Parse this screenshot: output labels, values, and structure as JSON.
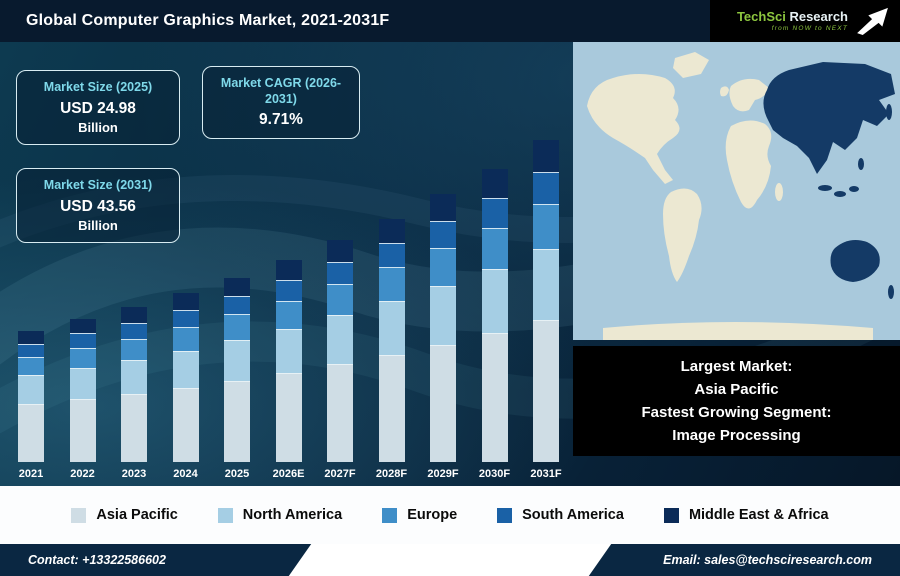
{
  "header": {
    "title": "Global Computer Graphics Market, 2021-2031F",
    "logo": {
      "brand_primary": "TechSci",
      "brand_secondary": "Research",
      "tagline": "from NOW to NEXT"
    }
  },
  "stats": {
    "size_2025": {
      "label": "Market Size (2025)",
      "value": "USD 24.98",
      "unit": "Billion"
    },
    "cagr": {
      "label": "Market CAGR (2026-2031)",
      "value": "9.71%"
    },
    "size_2031": {
      "label": "Market Size (2031)",
      "value": "USD 43.56",
      "unit": "Billion"
    }
  },
  "map": {
    "ocean_color": "#a9c9dc",
    "land_color": "#ece8d2",
    "highlight_color": "#143a66"
  },
  "info_box": {
    "line1": "Largest Market:",
    "line2": "Asia Pacific",
    "line3": "Fastest Growing Segment:",
    "line4": "Image Processing"
  },
  "footer": {
    "contact": "Contact: +13322586602",
    "email": "Email: sales@techsciresearch.com"
  },
  "chart_data": {
    "type": "bar",
    "stacked": true,
    "title": "Global Computer Graphics Market, 2021-2031F",
    "unit": "USD Billion",
    "legend_position": "bottom",
    "y_axis_visible": false,
    "categories": [
      "2021",
      "2022",
      "2023",
      "2024",
      "2025",
      "2026E",
      "2027F",
      "2028F",
      "2029F",
      "2030F",
      "2031F"
    ],
    "series": [
      {
        "name": "Asia Pacific",
        "color": "#cfdde5",
        "values": [
          7.9,
          8.5,
          9.2,
          10.0,
          11.0,
          12.1,
          13.3,
          14.5,
          15.9,
          17.5,
          19.2
        ]
      },
      {
        "name": "North America",
        "color": "#a5cee4",
        "values": [
          3.9,
          4.2,
          4.6,
          5.0,
          5.5,
          6.0,
          6.6,
          7.3,
          8.0,
          8.7,
          9.6
        ]
      },
      {
        "name": "Europe",
        "color": "#3f8ec8",
        "values": [
          2.5,
          2.7,
          2.9,
          3.2,
          3.5,
          3.8,
          4.2,
          4.6,
          5.1,
          5.6,
          6.1
        ]
      },
      {
        "name": "South America",
        "color": "#1a61a6",
        "values": [
          1.8,
          2.0,
          2.1,
          2.3,
          2.5,
          2.8,
          3.0,
          3.3,
          3.6,
          4.0,
          4.4
        ]
      },
      {
        "name": "Middle East & Africa",
        "color": "#0b2b58",
        "values": [
          1.8,
          1.9,
          2.1,
          2.3,
          2.5,
          2.7,
          3.0,
          3.3,
          3.6,
          3.9,
          4.3
        ]
      }
    ],
    "annotations": {
      "market_size_2025_usd_billion": 24.98,
      "market_size_2031_usd_billion": 43.56,
      "cagr_2026_2031_percent": 9.71
    }
  }
}
